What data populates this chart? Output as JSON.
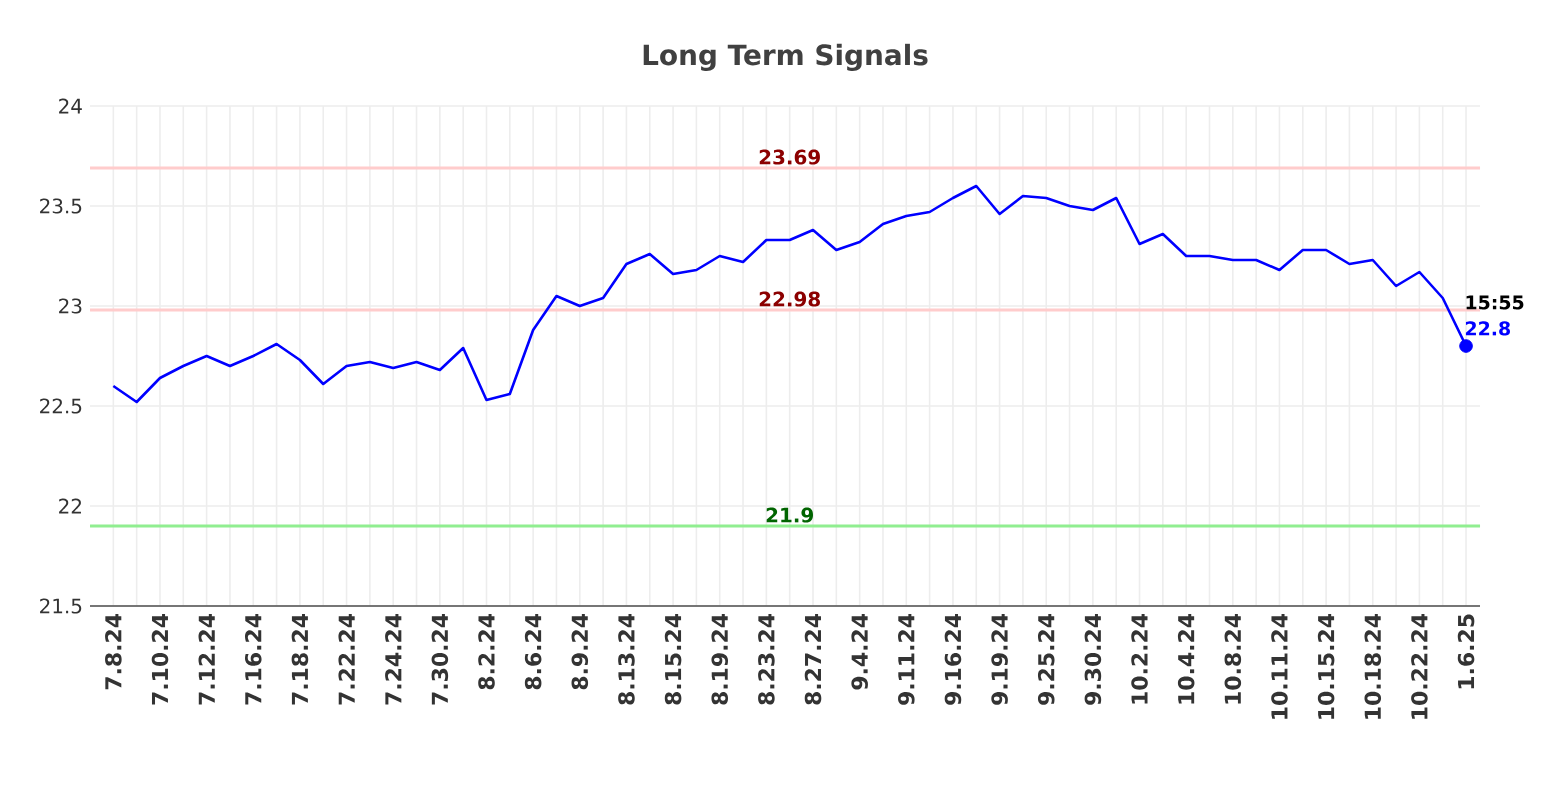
{
  "chart_data": {
    "type": "line",
    "title": "Long Term Signals",
    "categories": [
      "7.8.24",
      null,
      "7.10.24",
      null,
      "7.12.24",
      null,
      "7.16.24",
      null,
      "7.18.24",
      null,
      "7.22.24",
      null,
      "7.24.24",
      null,
      "7.30.24",
      null,
      "8.2.24",
      null,
      "8.6.24",
      null,
      "8.9.24",
      null,
      "8.13.24",
      null,
      "8.15.24",
      null,
      "8.19.24",
      null,
      "8.23.24",
      null,
      "8.27.24",
      null,
      "9.4.24",
      null,
      "9.11.24",
      null,
      "9.16.24",
      null,
      "9.19.24",
      null,
      "9.25.24",
      null,
      "9.30.24",
      null,
      "10.2.24",
      null,
      "10.4.24",
      null,
      "10.8.24",
      null,
      "10.11.24",
      null,
      "10.15.24",
      null,
      "10.18.24",
      null,
      "10.22.24",
      null,
      "1.6.25"
    ],
    "series": [
      {
        "color": "#0000ff",
        "values": [
          22.6,
          22.52,
          22.64,
          22.7,
          22.75,
          22.7,
          22.75,
          22.81,
          22.73,
          22.61,
          22.7,
          22.72,
          22.69,
          22.72,
          22.68,
          22.79,
          22.53,
          22.56,
          22.88,
          23.05,
          23.0,
          23.04,
          23.21,
          23.26,
          23.16,
          23.18,
          23.25,
          23.22,
          23.33,
          23.33,
          23.38,
          23.28,
          23.32,
          23.41,
          23.45,
          23.47,
          23.54,
          23.6,
          23.46,
          23.55,
          23.54,
          23.5,
          23.48,
          23.54,
          23.31,
          23.36,
          23.25,
          23.25,
          23.23,
          23.23,
          23.18,
          23.28,
          23.28,
          23.21,
          23.23,
          23.1,
          23.17,
          23.04,
          22.8
        ]
      },
      {
        "type": "scatter",
        "color": "#0000ff",
        "x": [
          "1.6.25"
        ],
        "values": [
          22.8
        ]
      }
    ],
    "ylim": [
      21.5,
      24
    ],
    "yticks": [
      21.5,
      22,
      22.5,
      23,
      23.5,
      24
    ],
    "grid": true,
    "ref_lines": [
      {
        "axis": "y",
        "value": 23.69,
        "label": "23.69",
        "color": "#ffcccc"
      },
      {
        "axis": "y",
        "value": 22.98,
        "label": "22.98",
        "color": "#ffcccc"
      },
      {
        "axis": "y",
        "value": 21.9,
        "label": "21.9",
        "color": "#90ee90"
      }
    ],
    "annotations": [
      "15:55",
      {
        "text": "22.8",
        "x": "1.6.25",
        "y": 22.8
      }
    ]
  }
}
